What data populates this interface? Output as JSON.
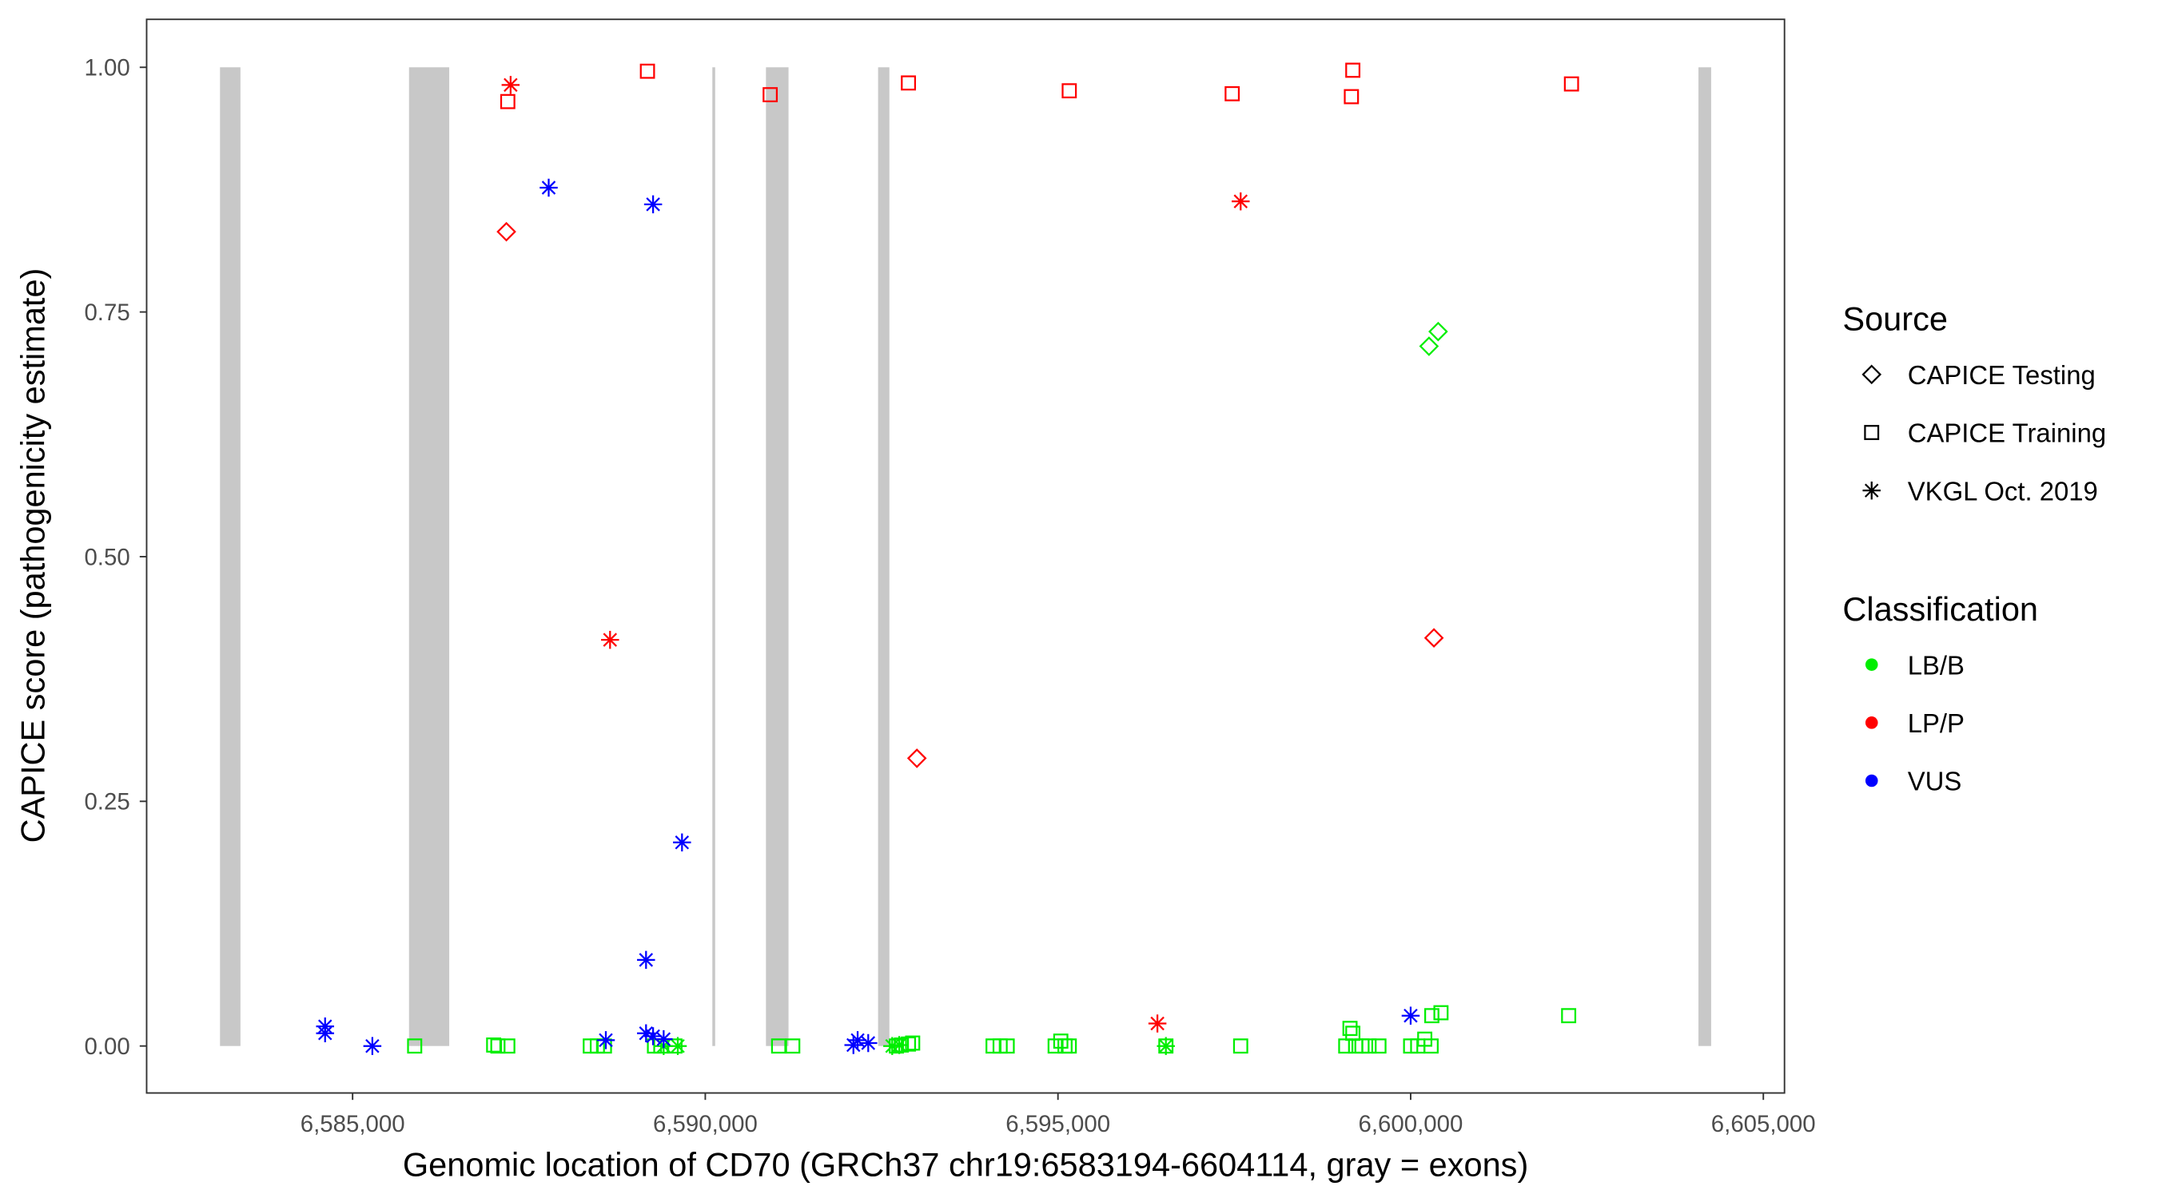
{
  "chart_data": {
    "type": "scatter",
    "xlabel": "Genomic location of CD70 (GRCh37 chr19:6583194-6604114, gray = exons)",
    "ylabel": "CAPICE score (pathogenicity estimate)",
    "xlim": [
      6582080,
      6605300
    ],
    "ylim": [
      -0.048,
      1.049
    ],
    "x_ticks": [
      6585000,
      6590000,
      6595000,
      6600000,
      6605000
    ],
    "x_tick_labels": [
      "6,585,000",
      "6,590,000",
      "6,595,000",
      "6,600,000",
      "6,605,000"
    ],
    "y_ticks": [
      0,
      0.25,
      0.5,
      0.75,
      1
    ],
    "y_tick_labels": [
      "0.00",
      "0.25",
      "0.50",
      "0.75",
      "1.00"
    ],
    "grid": false,
    "exon_color": "#c8c8c8",
    "exons": [
      [
        6583120,
        6583410
      ],
      [
        6585800,
        6586370
      ],
      [
        6590100,
        6590140
      ],
      [
        6590860,
        6591180
      ],
      [
        6592450,
        6592610
      ],
      [
        6604080,
        6604260
      ]
    ],
    "legend": {
      "placement": "right",
      "source_title": "Source",
      "source_items": [
        {
          "label": "CAPICE Testing",
          "shape": "diamond"
        },
        {
          "label": "CAPICE Training",
          "shape": "square"
        },
        {
          "label": "VKGL Oct. 2019",
          "shape": "asterisk"
        }
      ],
      "class_title": "Classification",
      "class_items": [
        {
          "label": "LB/B",
          "color": "#00ee00"
        },
        {
          "label": "LP/P",
          "color": "#ff0000"
        },
        {
          "label": "VUS",
          "color": "#0000ff"
        }
      ]
    },
    "series": [
      {
        "source": "CAPICE Training",
        "classification": "LP/P",
        "shape": "square",
        "color": "#ff0000",
        "points": [
          [
            6587200,
            0.965
          ],
          [
            6589180,
            0.996
          ],
          [
            6590920,
            0.972
          ],
          [
            6592880,
            0.984
          ],
          [
            6595160,
            0.976
          ],
          [
            6597470,
            0.973
          ],
          [
            6599160,
            0.97
          ],
          [
            6599180,
            0.997
          ],
          [
            6602280,
            0.983
          ]
        ]
      },
      {
        "source": "VKGL Oct. 2019",
        "classification": "LP/P",
        "shape": "asterisk",
        "color": "#ff0000",
        "points": [
          [
            6587240,
            0.982
          ],
          [
            6588650,
            0.415
          ],
          [
            6597590,
            0.863
          ],
          [
            6596410,
            0.023
          ]
        ]
      },
      {
        "source": "CAPICE Testing",
        "classification": "LP/P",
        "shape": "diamond",
        "color": "#ff0000",
        "points": [
          [
            6587180,
            0.832
          ],
          [
            6593000,
            0.294
          ],
          [
            6600330,
            0.417
          ]
        ]
      },
      {
        "source": "CAPICE Testing",
        "classification": "LB/B",
        "shape": "diamond",
        "color": "#00ee00",
        "points": [
          [
            6600260,
            0.715
          ],
          [
            6600390,
            0.73
          ]
        ]
      },
      {
        "source": "CAPICE Training",
        "classification": "LB/B",
        "shape": "square",
        "color": "#00ee00",
        "points": [
          [
            6585880,
            0
          ],
          [
            6587000,
            0.001
          ],
          [
            6587060,
            0
          ],
          [
            6587200,
            0
          ],
          [
            6588370,
            0
          ],
          [
            6588470,
            0
          ],
          [
            6588570,
            0
          ],
          [
            6589280,
            0
          ],
          [
            6589370,
            0
          ],
          [
            6589570,
            0
          ],
          [
            6591040,
            0
          ],
          [
            6591240,
            0
          ],
          [
            6592710,
            0
          ],
          [
            6592780,
            0.001
          ],
          [
            6592880,
            0.002
          ],
          [
            6592940,
            0.003
          ],
          [
            6594080,
            0
          ],
          [
            6594180,
            0
          ],
          [
            6594280,
            0
          ],
          [
            6594960,
            0
          ],
          [
            6595040,
            0.005
          ],
          [
            6595100,
            0
          ],
          [
            6595160,
            0
          ],
          [
            6596530,
            0
          ],
          [
            6597590,
            0
          ],
          [
            6599080,
            0
          ],
          [
            6599140,
            0.018
          ],
          [
            6599180,
            0.013
          ],
          [
            6599220,
            0
          ],
          [
            6599310,
            0
          ],
          [
            6599410,
            0
          ],
          [
            6599550,
            0
          ],
          [
            6600000,
            0
          ],
          [
            6600100,
            0
          ],
          [
            6600200,
            0.007
          ],
          [
            6600290,
            0
          ],
          [
            6600300,
            0.031
          ],
          [
            6600430,
            0.034
          ],
          [
            6602240,
            0.031
          ]
        ]
      },
      {
        "source": "VKGL Oct. 2019",
        "classification": "LB/B",
        "shape": "asterisk",
        "color": "#00ee00",
        "points": [
          [
            6589410,
            0
          ],
          [
            6589610,
            0
          ],
          [
            6592650,
            0
          ],
          [
            6592750,
            0.001
          ],
          [
            6596530,
            0
          ]
        ]
      },
      {
        "source": "VKGL Oct. 2019",
        "classification": "VUS",
        "shape": "asterisk",
        "color": "#0000ff",
        "points": [
          [
            6587780,
            0.877
          ],
          [
            6589260,
            0.86
          ],
          [
            6589670,
            0.208
          ],
          [
            6589160,
            0.088
          ],
          [
            6584610,
            0.02
          ],
          [
            6584610,
            0.013
          ],
          [
            6585280,
            0
          ],
          [
            6588590,
            0.006
          ],
          [
            6589160,
            0.013
          ],
          [
            6589260,
            0.01
          ],
          [
            6589410,
            0.007
          ],
          [
            6592100,
            0.001
          ],
          [
            6592160,
            0.006
          ],
          [
            6592310,
            0.003
          ],
          [
            6600000,
            0.031
          ]
        ]
      }
    ]
  }
}
